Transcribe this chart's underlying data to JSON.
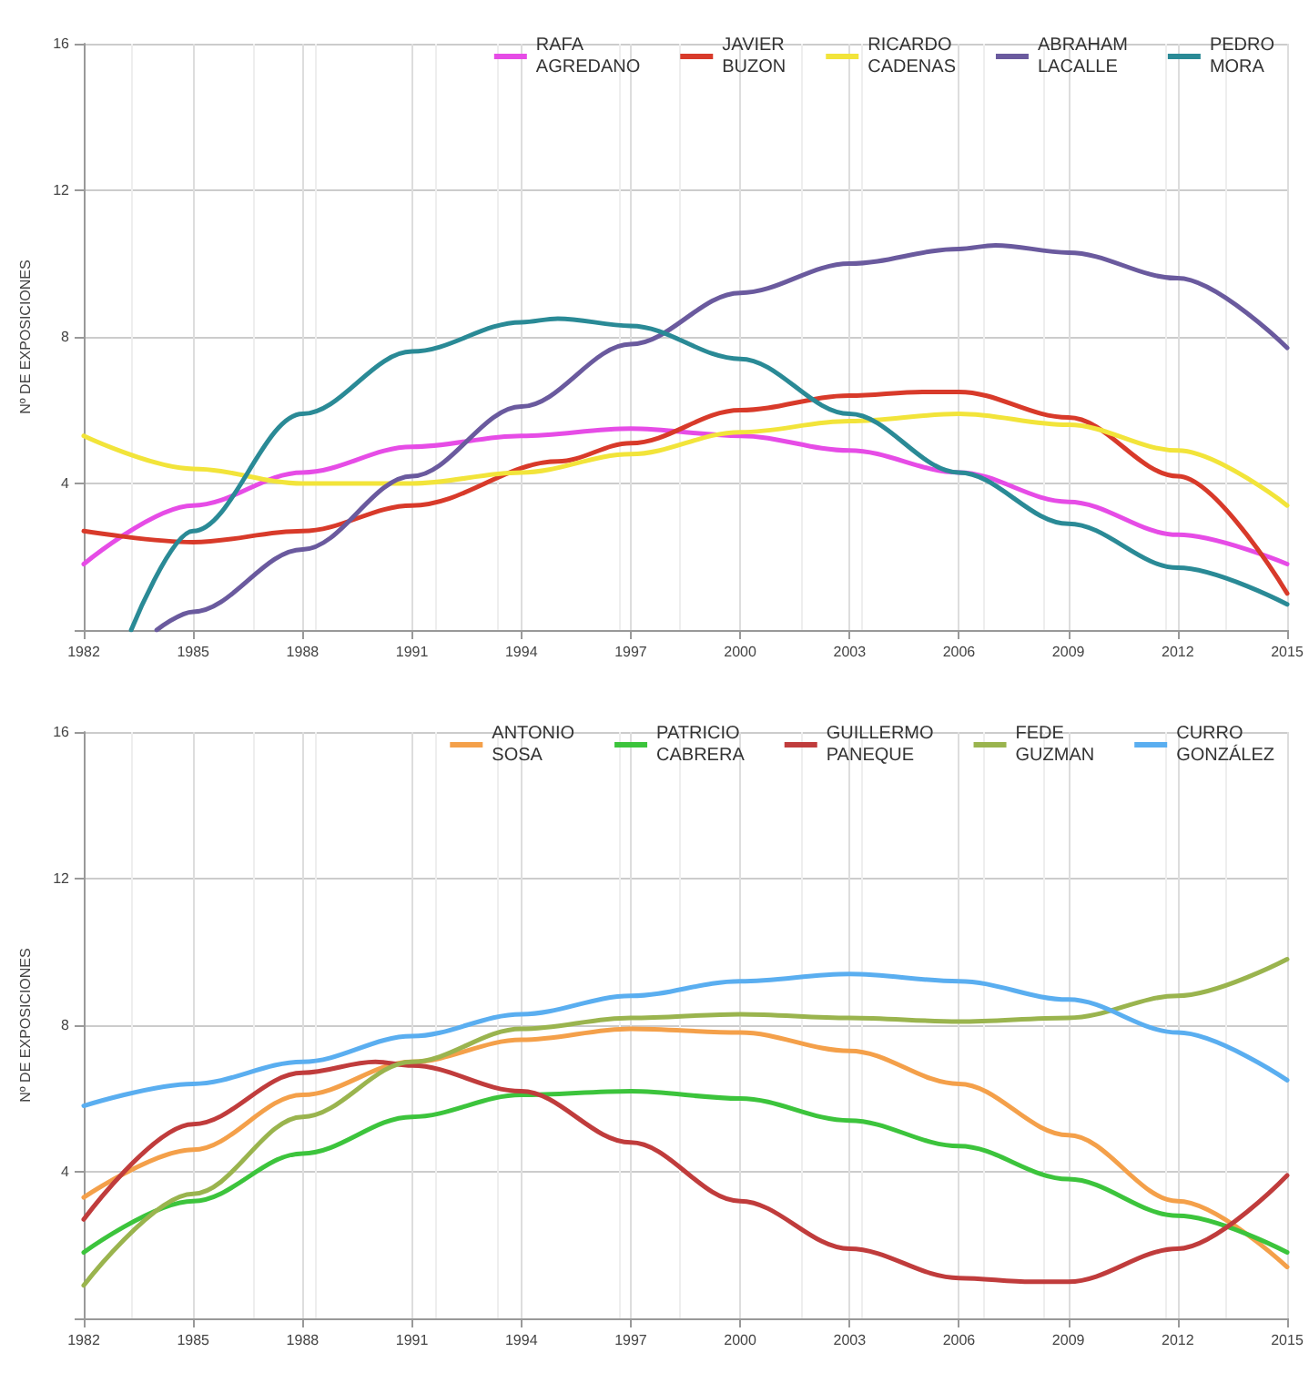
{
  "chart_data": [
    {
      "type": "line",
      "ylabel": "Nº DE EXPOSICIONES",
      "xlim": [
        1982,
        2015
      ],
      "xticks": [
        1982,
        1985,
        1988,
        1991,
        1994,
        1997,
        2000,
        2003,
        2006,
        2009,
        2012,
        2015
      ],
      "ylim": [
        0,
        16
      ],
      "yticks": [
        {
          "value": 0,
          "label": null
        },
        4,
        8,
        12,
        16
      ],
      "grid": true,
      "legend": "top right",
      "marker": "none",
      "line_style": "solid",
      "x": [
        1982,
        1985,
        1988,
        1991,
        1994,
        1997,
        2000,
        2003,
        2006,
        2009,
        2012,
        2015
      ],
      "series": [
        {
          "name": "RAFA\nAGREDANO",
          "color": "#e64ce6",
          "values": [
            1.8,
            3.4,
            4.3,
            5.0,
            5.3,
            5.5,
            5.3,
            4.9,
            4.3,
            3.5,
            2.6,
            1.8
          ]
        },
        {
          "name": "JAVIER\nBUZON",
          "color": "#d83a2a",
          "x": [
            1982,
            1985,
            1988,
            1991,
            1995,
            1997,
            2000,
            2003,
            2005,
            2006,
            2009,
            2012,
            2015
          ],
          "values": [
            2.7,
            2.4,
            2.7,
            3.4,
            4.6,
            5.1,
            6.0,
            6.4,
            6.5,
            6.5,
            5.8,
            4.2,
            1.0
          ]
        },
        {
          "name": "RICARDO\nCADENAS",
          "color": "#f2e43a",
          "values": [
            5.3,
            4.4,
            4.0,
            4.0,
            4.3,
            4.8,
            5.4,
            5.7,
            5.9,
            5.6,
            4.9,
            3.4
          ]
        },
        {
          "name": "ABRAHAM\nLACALLE",
          "color": "#6a5a9e",
          "x": [
            1984,
            1985,
            1988,
            1991,
            1994,
            1997,
            2000,
            2003,
            2006,
            2007,
            2009,
            2012,
            2015
          ],
          "values": [
            0,
            0.5,
            2.2,
            4.2,
            6.1,
            7.8,
            9.2,
            10.0,
            10.4,
            10.5,
            10.3,
            9.6,
            7.7
          ]
        },
        {
          "name": "PEDRO\nMORA",
          "color": "#2a8a96",
          "x": [
            1983.3,
            1985,
            1988,
            1991,
            1994,
            1995,
            1997,
            2000,
            2003,
            2006,
            2009,
            2012,
            2015
          ],
          "values": [
            0,
            2.7,
            5.9,
            7.6,
            8.4,
            8.5,
            8.3,
            7.4,
            5.9,
            4.3,
            2.9,
            1.7,
            0.7
          ]
        }
      ]
    },
    {
      "type": "line",
      "ylabel": "Nº DE EXPOSICIONES",
      "xlim": [
        1982,
        2015
      ],
      "xticks": [
        1982,
        1985,
        1988,
        1991,
        1994,
        1997,
        2000,
        2003,
        2006,
        2009,
        2012,
        2015
      ],
      "ylim": [
        0,
        16
      ],
      "yticks": [
        {
          "value": 0,
          "label": null
        },
        4,
        8,
        12,
        16
      ],
      "grid": true,
      "legend": "top right",
      "marker": "none",
      "line_style": "solid",
      "x": [
        1982,
        1985,
        1988,
        1991,
        1994,
        1997,
        2000,
        2003,
        2006,
        2009,
        2012,
        2015
      ],
      "series": [
        {
          "name": "ANTONIO\nSOSA",
          "color": "#f4a04a",
          "values": [
            3.3,
            4.6,
            6.1,
            7.0,
            7.6,
            7.9,
            7.8,
            7.3,
            6.4,
            5.0,
            3.2,
            1.4
          ]
        },
        {
          "name": "PATRICIO\nCABRERA",
          "color": "#3cc43c",
          "values": [
            1.8,
            3.2,
            4.5,
            5.5,
            6.1,
            6.2,
            6.0,
            5.4,
            4.7,
            3.8,
            2.8,
            1.8
          ]
        },
        {
          "name": "GUILLERMO\nPANEQUE",
          "color": "#c03c3c",
          "x": [
            1982,
            1985,
            1988,
            1990,
            1991,
            1994,
            1997,
            2000,
            2003,
            2006,
            2008,
            2009,
            2012,
            2015
          ],
          "values": [
            2.7,
            5.3,
            6.7,
            7.0,
            6.9,
            6.2,
            4.8,
            3.2,
            1.9,
            1.1,
            1.0,
            1.0,
            1.9,
            3.9
          ]
        },
        {
          "name": "FEDE\nGUZMAN",
          "color": "#9ab44e",
          "values": [
            0.9,
            3.4,
            5.5,
            7.0,
            7.9,
            8.2,
            8.3,
            8.2,
            8.1,
            8.2,
            8.8,
            9.8
          ]
        },
        {
          "name": "CURRO\nGONZÁLEZ",
          "color": "#5aaef0",
          "values": [
            5.8,
            6.4,
            7.0,
            7.7,
            8.3,
            8.8,
            9.2,
            9.4,
            9.2,
            8.7,
            7.8,
            6.5
          ]
        }
      ]
    }
  ]
}
